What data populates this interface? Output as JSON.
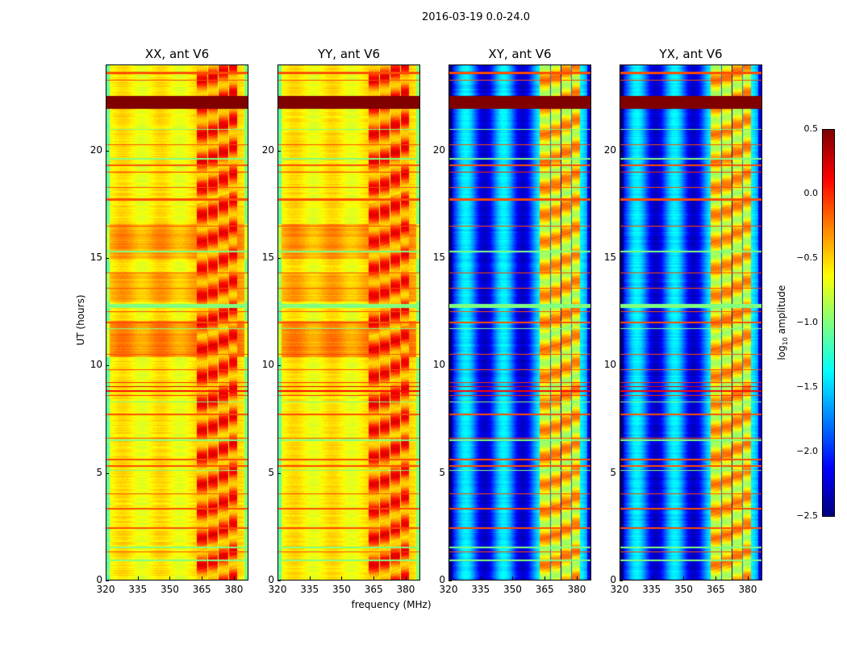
{
  "chart_data": {
    "type": "heatmap",
    "title": "2016-03-19 0.0-24.0",
    "xlabel": "frequency (MHz)",
    "ylabel": "UT (hours)",
    "xlim": [
      320,
      386.8
    ],
    "ylim": [
      0,
      24
    ],
    "xticks": [
      "320",
      "335",
      "350",
      "365",
      "380"
    ],
    "yticks": [
      "0",
      "5",
      "10",
      "15",
      "20"
    ],
    "colorbar": {
      "label_prefix": "log",
      "label_sub": "10",
      "label_suffix": " amplitude",
      "range": [
        -2.5,
        0.5
      ],
      "ticks": [
        "0.5",
        "0.0",
        "−0.5",
        "−1.0",
        "−1.5",
        "−2.0",
        "−2.5"
      ],
      "colormap": "jet"
    },
    "rfi_channels_mhz": [
      [
        362.5,
        367.5
      ],
      [
        368,
        372.5
      ],
      [
        373,
        377.5
      ],
      [
        378,
        381.5
      ]
    ],
    "panels": [
      {
        "title": "XX, ant V6",
        "base": -0.6,
        "rfi_boost": 0.45,
        "stripe": 0.1,
        "bands": [
          [
            15.0,
            16.6,
            -0.35
          ],
          [
            10.4,
            12.1,
            -0.3
          ],
          [
            13.0,
            14.3,
            -0.4
          ]
        ]
      },
      {
        "title": "YY, ant V6",
        "base": -0.6,
        "rfi_boost": 0.45,
        "stripe": 0.1,
        "bands": [
          [
            15.0,
            16.6,
            -0.35
          ],
          [
            10.4,
            12.1,
            -0.3
          ],
          [
            13.0,
            14.3,
            -0.4
          ]
        ]
      },
      {
        "title": "XY, ant V6",
        "base": -1.85,
        "rfi_boost": 1.3,
        "stripe": 0.45,
        "bands": []
      },
      {
        "title": "YX, ant V6",
        "base": -1.85,
        "rfi_boost": 1.3,
        "stripe": 0.45,
        "bands": []
      }
    ],
    "rfi_rows_hours": [
      [
        22.0,
        22.6,
        0.5
      ],
      [
        23.6,
        23.7,
        -0.1
      ],
      [
        23.3,
        23.35,
        -0.1
      ],
      [
        20.3,
        20.35,
        -0.1
      ],
      [
        19.3,
        19.4,
        -0.1
      ],
      [
        19.0,
        19.05,
        0.0
      ],
      [
        18.3,
        18.35,
        -0.1
      ],
      [
        17.7,
        17.8,
        -0.1
      ],
      [
        16.5,
        16.55,
        -0.1
      ],
      [
        14.3,
        14.35,
        -0.1
      ],
      [
        13.6,
        13.65,
        -0.1
      ],
      [
        12.5,
        12.55,
        -0.1
      ],
      [
        12.0,
        12.05,
        -0.1
      ],
      [
        10.5,
        10.55,
        -0.1
      ],
      [
        9.8,
        9.85,
        -0.1
      ],
      [
        9.2,
        9.25,
        0.0
      ],
      [
        9.0,
        9.05,
        0.2
      ],
      [
        8.8,
        8.85,
        0.1
      ],
      [
        8.6,
        8.65,
        0.0
      ],
      [
        7.7,
        7.75,
        -0.1
      ],
      [
        6.6,
        6.65,
        -0.1
      ],
      [
        5.6,
        5.65,
        -0.1
      ],
      [
        5.3,
        5.35,
        -0.1
      ],
      [
        4.0,
        4.05,
        -0.1
      ],
      [
        3.3,
        3.35,
        -0.1
      ],
      [
        2.4,
        2.45,
        -0.1
      ],
      [
        1.3,
        1.35,
        -0.1
      ],
      [
        21.0,
        21.05,
        -1.0
      ],
      [
        19.6,
        19.7,
        -1.0
      ],
      [
        15.3,
        15.35,
        -1.0
      ],
      [
        12.7,
        12.9,
        -1.0
      ],
      [
        11.7,
        11.75,
        -1.0
      ],
      [
        8.3,
        8.35,
        -1.0
      ],
      [
        6.5,
        6.55,
        -1.0
      ],
      [
        5.1,
        5.15,
        -1.0
      ],
      [
        1.5,
        1.55,
        -1.0
      ],
      [
        0.9,
        0.95,
        -1.0
      ]
    ]
  }
}
